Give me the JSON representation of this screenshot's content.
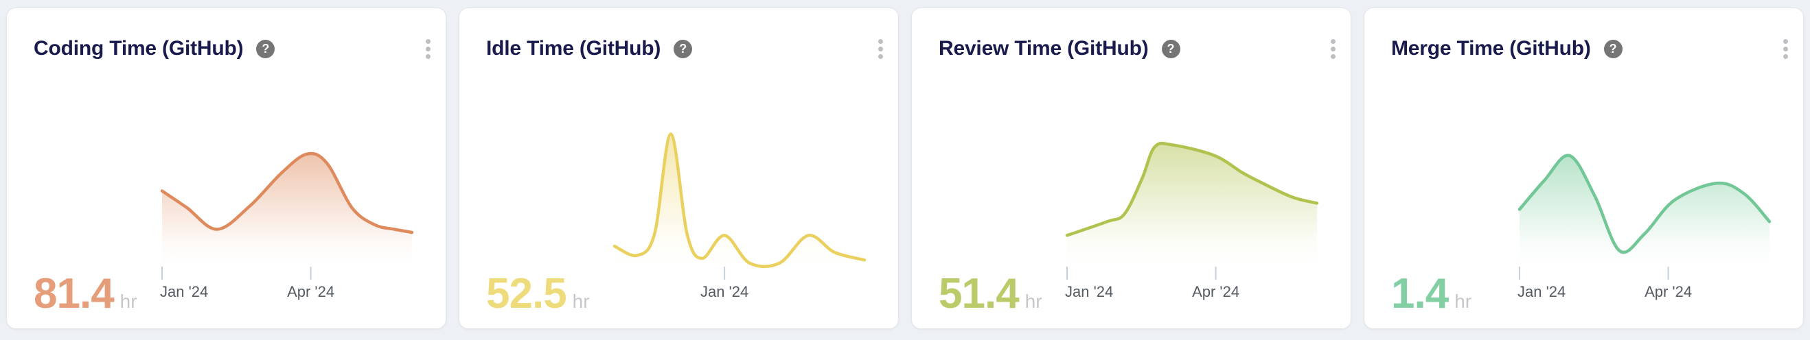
{
  "page": {
    "background_color": "#EDF0F4"
  },
  "card_style": {
    "background_color": "#FFFFFF",
    "border_color": "#E5E7EB",
    "title_color": "#1A1B4D",
    "axis_label_color": "#555B62",
    "axis_tick_color": "#C6D0E0",
    "unit_color": "#C5C7CA",
    "help_icon_glyph": "?",
    "help_icon_bg": "#757575",
    "menu_icon": "kebab-vertical",
    "menu_icon_color": "#BCBFC2"
  },
  "chart_data": [
    {
      "type": "area",
      "title": "Coding Time (GitHub)",
      "summary_value": 81.4,
      "unit": "hr",
      "line_color": "#DE8A5C",
      "value_color": "#E69D79",
      "y_axis_visible": false,
      "note": "sparkline; v = relative height 0-1 of unlabeled y-axis",
      "x_ticks": [
        {
          "label": "Jan '24",
          "pos": 0.0,
          "align": "start"
        },
        {
          "label": "Apr '24",
          "pos": 0.595,
          "align": "middle"
        }
      ],
      "points": [
        [
          0,
          0.48
        ],
        [
          0.1,
          0.37
        ],
        [
          0.22,
          0.23
        ],
        [
          0.35,
          0.38
        ],
        [
          0.48,
          0.6
        ],
        [
          0.58,
          0.72
        ],
        [
          0.66,
          0.66
        ],
        [
          0.76,
          0.37
        ],
        [
          0.85,
          0.26
        ],
        [
          0.93,
          0.23
        ],
        [
          1,
          0.21
        ]
      ]
    },
    {
      "type": "area",
      "title": "Idle Time (GitHub)",
      "summary_value": 52.5,
      "unit": "hr",
      "line_color": "#EAD15F",
      "value_color": "#EEDC7C",
      "y_axis_visible": false,
      "note": "sparkline; v = relative height 0-1 of unlabeled y-axis",
      "x_ticks": [
        {
          "label": "Jan '24",
          "pos": 0.44,
          "align": "middle"
        }
      ],
      "points": [
        [
          0,
          0.12
        ],
        [
          0.09,
          0.06
        ],
        [
          0.16,
          0.2
        ],
        [
          0.225,
          0.85
        ],
        [
          0.29,
          0.2
        ],
        [
          0.35,
          0.04
        ],
        [
          0.44,
          0.19
        ],
        [
          0.54,
          0.01
        ],
        [
          0.66,
          0.01
        ],
        [
          0.775,
          0.19
        ],
        [
          0.88,
          0.08
        ],
        [
          1,
          0.03
        ]
      ]
    },
    {
      "type": "area",
      "title": "Review Time (GitHub)",
      "summary_value": 51.4,
      "unit": "hr",
      "line_color": "#B2C24F",
      "value_color": "#BCCB69",
      "y_axis_visible": false,
      "note": "sparkline; v = relative height 0-1 of unlabeled y-axis",
      "x_ticks": [
        {
          "label": "Jan '24",
          "pos": 0.0,
          "align": "start"
        },
        {
          "label": "Apr '24",
          "pos": 0.595,
          "align": "middle"
        }
      ],
      "points": [
        [
          0,
          0.19
        ],
        [
          0.16,
          0.28
        ],
        [
          0.23,
          0.33
        ],
        [
          0.3,
          0.56
        ],
        [
          0.35,
          0.765
        ],
        [
          0.42,
          0.78
        ],
        [
          0.59,
          0.71
        ],
        [
          0.7,
          0.6
        ],
        [
          0.77,
          0.54
        ],
        [
          0.9,
          0.44
        ],
        [
          1,
          0.4
        ]
      ]
    },
    {
      "type": "area",
      "title": "Merge Time (GitHub)",
      "summary_value": 1.4,
      "unit": "hr",
      "line_color": "#71C795",
      "value_color": "#81CFA3",
      "y_axis_visible": false,
      "note": "sparkline; v = relative height 0-1 of unlabeled y-axis",
      "x_ticks": [
        {
          "label": "Jan '24",
          "pos": 0.0,
          "align": "start"
        },
        {
          "label": "Apr '24",
          "pos": 0.595,
          "align": "middle"
        }
      ],
      "points": [
        [
          0,
          0.36
        ],
        [
          0.1,
          0.55
        ],
        [
          0.2,
          0.71
        ],
        [
          0.3,
          0.45
        ],
        [
          0.4,
          0.09
        ],
        [
          0.5,
          0.2
        ],
        [
          0.62,
          0.42
        ],
        [
          0.79,
          0.53
        ],
        [
          0.9,
          0.46
        ],
        [
          1,
          0.28
        ]
      ]
    }
  ]
}
